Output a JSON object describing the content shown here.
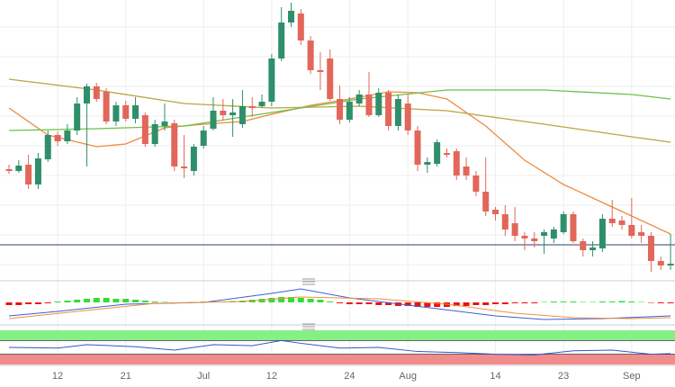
{
  "chart_data": [
    {
      "type": "candlestick",
      "categories": [
        null,
        null,
        null,
        null,
        null,
        "12",
        null,
        null,
        null,
        null,
        null,
        null,
        "21",
        null,
        null,
        null,
        null,
        null,
        null,
        null,
        "Jul",
        null,
        null,
        null,
        null,
        null,
        null,
        "12",
        null,
        null,
        null,
        null,
        null,
        null,
        null,
        "24",
        null,
        null,
        null,
        null,
        null,
        "Aug",
        null,
        null,
        null,
        null,
        null,
        null,
        null,
        null,
        "14",
        null,
        null,
        null,
        null,
        null,
        null,
        "23",
        null,
        null,
        null,
        null,
        null,
        null,
        "Sep",
        null,
        null,
        null,
        null
      ],
      "open": [
        122,
        120,
        127,
        105,
        133,
        160,
        153,
        165,
        195,
        214,
        208,
        175,
        193,
        178,
        182,
        150,
        170,
        173,
        125,
        120,
        148,
        167,
        187,
        182,
        172,
        192,
        192,
        197,
        245,
        285,
        295,
        265,
        232,
        245,
        200,
        177,
        195,
        205,
        182,
        207,
        170,
        195,
        165,
        127,
        128,
        140,
        142,
        125,
        115,
        97,
        77,
        72,
        62,
        48,
        45,
        48,
        45,
        52,
        72,
        42,
        32,
        34,
        67,
        65,
        60,
        52,
        48,
        20,
        15
      ],
      "high": [
        127,
        132,
        138,
        140,
        165,
        164,
        172,
        202,
        217,
        218,
        212,
        197,
        198,
        202,
        185,
        177,
        195,
        177,
        160,
        150,
        170,
        202,
        200,
        200,
        210,
        202,
        205,
        250,
        302,
        307,
        300,
        270,
        252,
        255,
        215,
        202,
        210,
        230,
        212,
        210,
        205,
        205,
        170,
        135,
        155,
        145,
        145,
        135,
        120,
        135,
        80,
        82,
        80,
        52,
        52,
        55,
        58,
        75,
        75,
        45,
        42,
        72,
        88,
        70,
        90,
        60,
        52,
        25,
        50
      ],
      "low": [
        117,
        118,
        100,
        100,
        130,
        148,
        150,
        160,
        125,
        197,
        172,
        170,
        175,
        173,
        147,
        147,
        165,
        120,
        112,
        115,
        145,
        165,
        176,
        158,
        168,
        180,
        190,
        192,
        242,
        280,
        260,
        228,
        210,
        198,
        172,
        174,
        192,
        180,
        180,
        165,
        165,
        160,
        120,
        118,
        125,
        135,
        110,
        110,
        92,
        70,
        65,
        48,
        42,
        32,
        35,
        28,
        40,
        50,
        40,
        25,
        25,
        30,
        58,
        55,
        45,
        40,
        8,
        10,
        10
      ],
      "close": [
        120,
        126,
        105,
        134,
        160,
        153,
        165,
        195,
        214,
        200,
        175,
        193,
        178,
        193,
        150,
        172,
        175,
        125,
        123,
        147,
        165,
        187,
        182,
        185,
        192,
        190,
        197,
        245,
        285,
        298,
        265,
        232,
        230,
        200,
        177,
        197,
        205,
        182,
        207,
        170,
        200,
        165,
        127,
        130,
        152,
        138,
        115,
        115,
        97,
        75,
        72,
        55,
        48,
        45,
        42,
        52,
        55,
        72,
        42,
        32,
        35,
        67,
        62,
        60,
        48,
        48,
        20,
        15,
        17
      ],
      "up_color": "#2f8f6a",
      "down_color": "#e2665a",
      "ylim": [
        0,
        310
      ],
      "overlays": [
        {
          "color": "#f08a3c",
          "x": [
            0,
            4,
            9,
            12,
            16,
            20,
            24,
            27,
            31,
            35,
            39,
            42,
            45,
            49,
            53,
            57,
            61,
            65,
            68
          ],
          "values": [
            190,
            160,
            147,
            150,
            168,
            172,
            175,
            183,
            193,
            200,
            208,
            207,
            200,
            170,
            132,
            105,
            85,
            65,
            50
          ]
        },
        {
          "color": "#b8a640",
          "x": [
            0,
            9,
            18,
            27,
            36,
            45,
            55,
            64,
            68
          ],
          "values": [
            222,
            210,
            195,
            190,
            192,
            187,
            172,
            158,
            152
          ]
        },
        {
          "color": "#6cc04a",
          "x": [
            0,
            9,
            18,
            27,
            36,
            45,
            55,
            64,
            68
          ],
          "values": [
            165,
            167,
            170,
            185,
            200,
            210,
            210,
            205,
            200
          ]
        }
      ],
      "hlines": [
        {
          "value": 38,
          "color": "#2f3f6f"
        }
      ]
    },
    {
      "type": "macd",
      "histogram": [
        -3,
        -3,
        -2,
        -2,
        -1,
        1,
        2,
        3,
        4,
        5,
        5,
        4,
        4,
        3,
        2,
        1,
        0.5,
        -0.5,
        -0.5,
        0.5,
        1,
        1,
        1,
        1.5,
        2,
        3,
        4,
        5,
        6,
        6,
        5,
        4,
        3,
        1,
        -1,
        -2,
        -2,
        -2,
        -3,
        -3,
        -4,
        -4,
        -5,
        -5,
        -5,
        -5,
        -4,
        -4,
        -3,
        -3,
        -2,
        -2,
        -1,
        -1,
        -1,
        0.5,
        1,
        1,
        1,
        0.5,
        0.5,
        1,
        1,
        1.5,
        1,
        0.5,
        -0.5,
        -1,
        -1
      ],
      "up_color": "#33dd33",
      "down_color": "#ee1111",
      "ylim": [
        -20,
        20
      ],
      "lines": [
        {
          "color": "#3a5fd8",
          "x": [
            0,
            5,
            12,
            20,
            27,
            30,
            35,
            41,
            50,
            55,
            61,
            68
          ],
          "values": [
            -15,
            -10,
            -2,
            0,
            10,
            15,
            5,
            -3,
            -15,
            -19,
            -18,
            -15
          ]
        },
        {
          "color": "#f0903a",
          "x": [
            0,
            7,
            15,
            24,
            30,
            38,
            45,
            52,
            58,
            64,
            68
          ],
          "values": [
            -18,
            -10,
            -1,
            1,
            6,
            4,
            -2,
            -12,
            -17,
            -18,
            -17
          ]
        }
      ]
    },
    {
      "type": "rsi",
      "ylim": [
        0,
        100
      ],
      "bands": [
        {
          "range": [
            70,
            100
          ],
          "color": "#86ef86"
        },
        {
          "range": [
            0,
            30
          ],
          "color": "#f28b8b"
        }
      ],
      "lines": [
        {
          "color": "#3355cc",
          "x": [
            0,
            5,
            8,
            13,
            17,
            21,
            25,
            28,
            30,
            34,
            38,
            42,
            46,
            50,
            54,
            58,
            62,
            66,
            68
          ],
          "values": [
            50,
            48,
            58,
            52,
            42,
            58,
            55,
            70,
            62,
            48,
            50,
            38,
            35,
            30,
            28,
            40,
            42,
            30,
            32
          ]
        }
      ]
    }
  ]
}
